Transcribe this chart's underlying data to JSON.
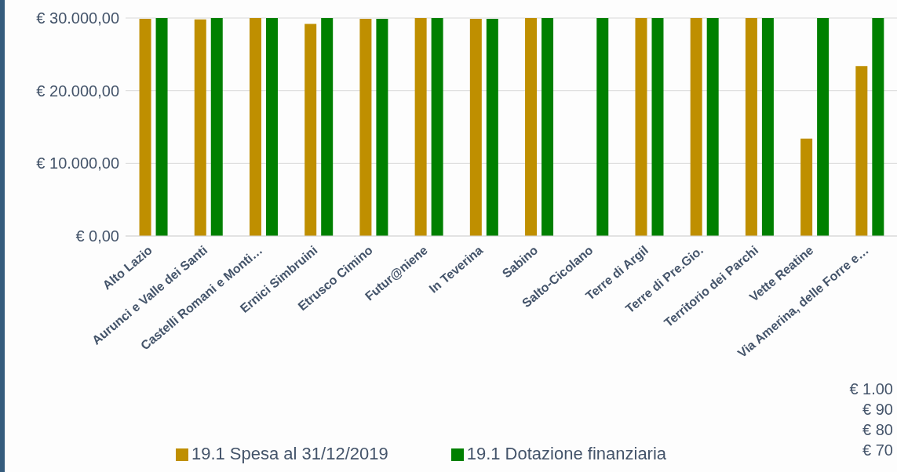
{
  "chart_data": {
    "type": "bar",
    "categories": [
      "Alto Lazio",
      "Aurunci e Valle dei Santi",
      "Castelli Romani e Monti…",
      "Ernici Simbruini",
      "Etrusco Cimino",
      "Futur@niene",
      "In Teverina",
      "Sabino",
      "Salto-Cicolano",
      "Terre di Argil",
      "Terre di Pre.Gio.",
      "Territorio dei Parchi",
      "Vette Reatine",
      "Via Amerina, delle Forre e…"
    ],
    "series": [
      {
        "name": "19.1 Spesa al 31/12/2019",
        "color": "#bf8f00",
        "values": [
          29900,
          29800,
          30000,
          29200,
          29900,
          30000,
          29900,
          30000,
          null,
          30000,
          30000,
          30000,
          13400,
          23400
        ]
      },
      {
        "name": "19.1 Dotazione finanziaria",
        "color": "#008000",
        "values": [
          30000,
          30000,
          30000,
          30000,
          29900,
          30000,
          29900,
          30000,
          30000,
          30000,
          30000,
          30000,
          30000,
          30000
        ]
      }
    ],
    "ylim": [
      0,
      30000
    ],
    "yticks": [
      {
        "value": 0,
        "label": "€ 0,00"
      },
      {
        "value": 10000,
        "label": "€ 10.000,00"
      },
      {
        "value": 20000,
        "label": "€ 20.000,00"
      },
      {
        "value": 30000,
        "label": "€ 30.000,00"
      }
    ],
    "grid": "y",
    "legend": "bottom",
    "annotations": [
      "€ 1.00",
      "€ 90",
      "€ 80",
      "€ 70"
    ]
  }
}
